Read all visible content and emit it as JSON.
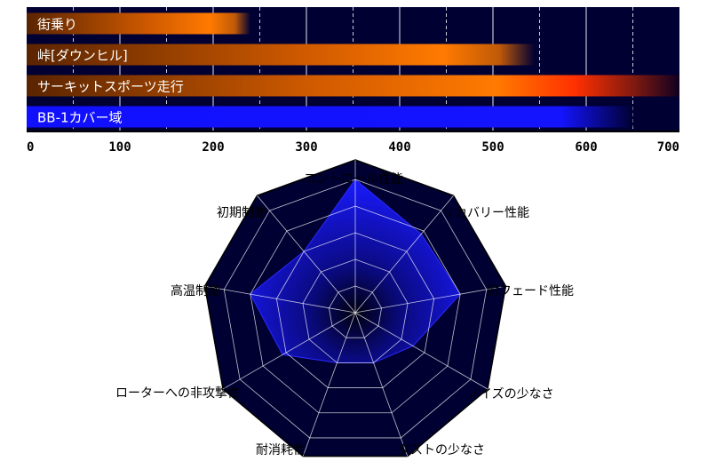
{
  "chart_data": [
    {
      "type": "bar",
      "orientation": "horizontal",
      "categories": [
        "街乗り",
        "峠[ダウンヒル]",
        "サーキットスポーツ走行",
        "BB-1カバー域"
      ],
      "values": [
        240,
        545,
        700,
        650
      ],
      "xlim": [
        0,
        700
      ],
      "x_ticks": [
        "0",
        "100",
        "200",
        "300",
        "400",
        "500",
        "600",
        "700"
      ],
      "grid": true,
      "colors": {
        "background": "#000033",
        "gradient_start": "#6a2a00",
        "gradient_end": "#ff7a00",
        "peak": "#ff3300",
        "coverage": "#1414ff"
      }
    },
    {
      "type": "radar",
      "axes": [
        "コントロール性能",
        "リカバリー性能",
        "耐フェード性能",
        "ノイズの少なさ",
        "ダストの少なさ",
        "耐消耗性",
        "ローターへの非攻撃性",
        "高温制動",
        "初期制動"
      ],
      "values": [
        1.0,
        0.77,
        0.8,
        0.5,
        0.4,
        0.4,
        0.63,
        0.8,
        0.6
      ],
      "rmax": 1.0,
      "rings": 5,
      "colors": {
        "background": "#000033",
        "fill": "#1a1aff",
        "grid": "#ffffff"
      }
    }
  ]
}
